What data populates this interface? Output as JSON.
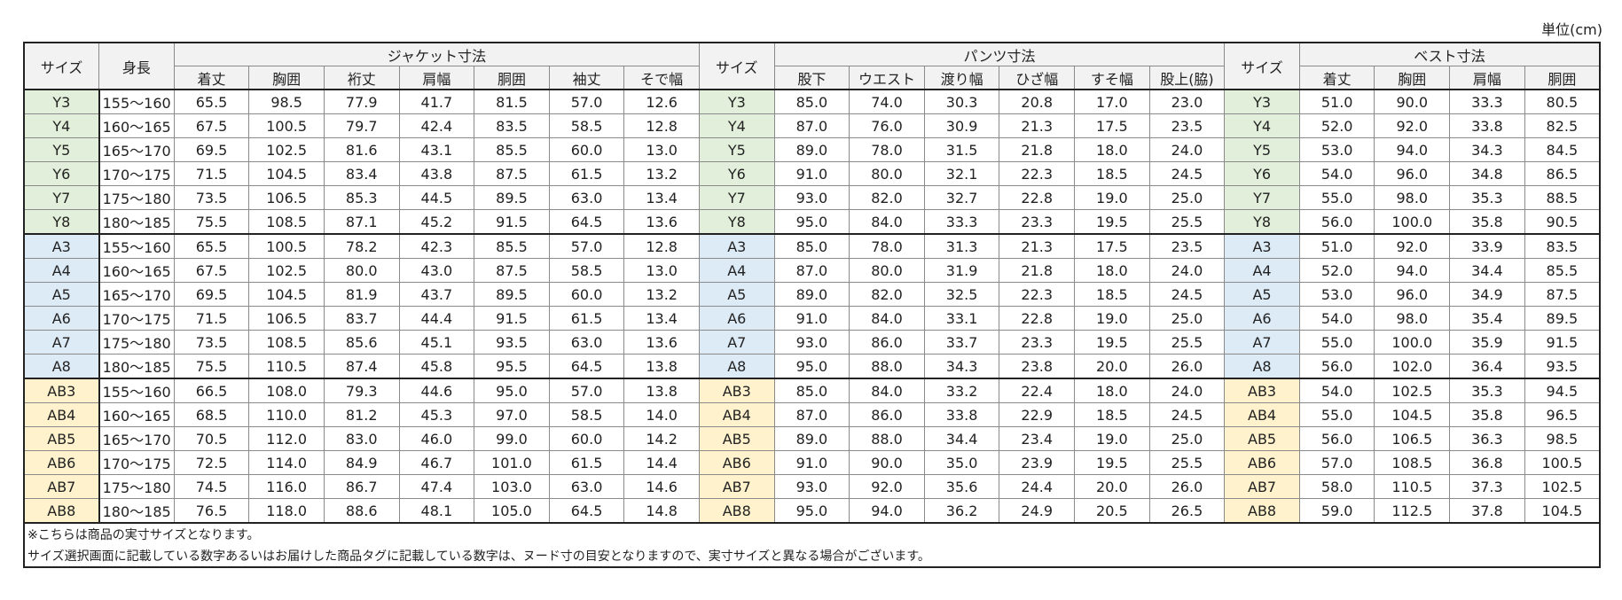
{
  "unit": "単位(cm)",
  "header": {
    "size": "サイズ",
    "height": "身長",
    "jacket": {
      "title": "ジャケット寸法",
      "columns": [
        "着丈",
        "胸囲",
        "裄丈",
        "肩幅",
        "胴囲",
        "袖丈",
        "そで幅"
      ]
    },
    "pants": {
      "title": "パンツ寸法",
      "columns": [
        "股下",
        "ウエスト",
        "渡り幅",
        "ひざ幅",
        "すそ幅",
        "股上(脇)"
      ]
    },
    "vest": {
      "title": "ベスト寸法",
      "columns": [
        "着丈",
        "胸囲",
        "肩幅",
        "胴囲"
      ]
    }
  },
  "groups": [
    {
      "color": "#e2efda",
      "rows": [
        {
          "size": "Y3",
          "height": "155～160",
          "jacket": [
            "65.5",
            "98.5",
            "77.9",
            "41.7",
            "81.5",
            "57.0",
            "12.6"
          ],
          "pants": [
            "85.0",
            "74.0",
            "30.3",
            "20.8",
            "17.0",
            "23.0"
          ],
          "vest": [
            "51.0",
            "90.0",
            "33.3",
            "80.5"
          ]
        },
        {
          "size": "Y4",
          "height": "160～165",
          "jacket": [
            "67.5",
            "100.5",
            "79.7",
            "42.4",
            "83.5",
            "58.5",
            "12.8"
          ],
          "pants": [
            "87.0",
            "76.0",
            "30.9",
            "21.3",
            "17.5",
            "23.5"
          ],
          "vest": [
            "52.0",
            "92.0",
            "33.8",
            "82.5"
          ]
        },
        {
          "size": "Y5",
          "height": "165～170",
          "jacket": [
            "69.5",
            "102.5",
            "81.6",
            "43.1",
            "85.5",
            "60.0",
            "13.0"
          ],
          "pants": [
            "89.0",
            "78.0",
            "31.5",
            "21.8",
            "18.0",
            "24.0"
          ],
          "vest": [
            "53.0",
            "94.0",
            "34.3",
            "84.5"
          ]
        },
        {
          "size": "Y6",
          "height": "170～175",
          "jacket": [
            "71.5",
            "104.5",
            "83.4",
            "43.8",
            "87.5",
            "61.5",
            "13.2"
          ],
          "pants": [
            "91.0",
            "80.0",
            "32.1",
            "22.3",
            "18.5",
            "24.5"
          ],
          "vest": [
            "54.0",
            "96.0",
            "34.8",
            "86.5"
          ]
        },
        {
          "size": "Y7",
          "height": "175～180",
          "jacket": [
            "73.5",
            "106.5",
            "85.3",
            "44.5",
            "89.5",
            "63.0",
            "13.4"
          ],
          "pants": [
            "93.0",
            "82.0",
            "32.7",
            "22.8",
            "19.0",
            "25.0"
          ],
          "vest": [
            "55.0",
            "98.0",
            "35.3",
            "88.5"
          ]
        },
        {
          "size": "Y8",
          "height": "180～185",
          "jacket": [
            "75.5",
            "108.5",
            "87.1",
            "45.2",
            "91.5",
            "64.5",
            "13.6"
          ],
          "pants": [
            "95.0",
            "84.0",
            "33.3",
            "23.3",
            "19.5",
            "25.5"
          ],
          "vest": [
            "56.0",
            "100.0",
            "35.8",
            "90.5"
          ]
        }
      ]
    },
    {
      "color": "#ddebf7",
      "rows": [
        {
          "size": "A3",
          "height": "155～160",
          "jacket": [
            "65.5",
            "100.5",
            "78.2",
            "42.3",
            "85.5",
            "57.0",
            "12.8"
          ],
          "pants": [
            "85.0",
            "78.0",
            "31.3",
            "21.3",
            "17.5",
            "23.5"
          ],
          "vest": [
            "51.0",
            "92.0",
            "33.9",
            "83.5"
          ]
        },
        {
          "size": "A4",
          "height": "160～165",
          "jacket": [
            "67.5",
            "102.5",
            "80.0",
            "43.0",
            "87.5",
            "58.5",
            "13.0"
          ],
          "pants": [
            "87.0",
            "80.0",
            "31.9",
            "21.8",
            "18.0",
            "24.0"
          ],
          "vest": [
            "52.0",
            "94.0",
            "34.4",
            "85.5"
          ]
        },
        {
          "size": "A5",
          "height": "165～170",
          "jacket": [
            "69.5",
            "104.5",
            "81.9",
            "43.7",
            "89.5",
            "60.0",
            "13.2"
          ],
          "pants": [
            "89.0",
            "82.0",
            "32.5",
            "22.3",
            "18.5",
            "24.5"
          ],
          "vest": [
            "53.0",
            "96.0",
            "34.9",
            "87.5"
          ]
        },
        {
          "size": "A6",
          "height": "170～175",
          "jacket": [
            "71.5",
            "106.5",
            "83.7",
            "44.4",
            "91.5",
            "61.5",
            "13.4"
          ],
          "pants": [
            "91.0",
            "84.0",
            "33.1",
            "22.8",
            "19.0",
            "25.0"
          ],
          "vest": [
            "54.0",
            "98.0",
            "35.4",
            "89.5"
          ]
        },
        {
          "size": "A7",
          "height": "175～180",
          "jacket": [
            "73.5",
            "108.5",
            "85.6",
            "45.1",
            "93.5",
            "63.0",
            "13.6"
          ],
          "pants": [
            "93.0",
            "86.0",
            "33.7",
            "23.3",
            "19.5",
            "25.5"
          ],
          "vest": [
            "55.0",
            "100.0",
            "35.9",
            "91.5"
          ]
        },
        {
          "size": "A8",
          "height": "180～185",
          "jacket": [
            "75.5",
            "110.5",
            "87.4",
            "45.8",
            "95.5",
            "64.5",
            "13.8"
          ],
          "pants": [
            "95.0",
            "88.0",
            "34.3",
            "23.8",
            "20.0",
            "26.0"
          ],
          "vest": [
            "56.0",
            "102.0",
            "36.4",
            "93.5"
          ]
        }
      ]
    },
    {
      "color": "#fff2cc",
      "rows": [
        {
          "size": "AB3",
          "height": "155～160",
          "jacket": [
            "66.5",
            "108.0",
            "79.3",
            "44.6",
            "95.0",
            "57.0",
            "13.8"
          ],
          "pants": [
            "85.0",
            "84.0",
            "33.2",
            "22.4",
            "18.0",
            "24.0"
          ],
          "vest": [
            "54.0",
            "102.5",
            "35.3",
            "94.5"
          ]
        },
        {
          "size": "AB4",
          "height": "160～165",
          "jacket": [
            "68.5",
            "110.0",
            "81.2",
            "45.3",
            "97.0",
            "58.5",
            "14.0"
          ],
          "pants": [
            "87.0",
            "86.0",
            "33.8",
            "22.9",
            "18.5",
            "24.5"
          ],
          "vest": [
            "55.0",
            "104.5",
            "35.8",
            "96.5"
          ]
        },
        {
          "size": "AB5",
          "height": "165～170",
          "jacket": [
            "70.5",
            "112.0",
            "83.0",
            "46.0",
            "99.0",
            "60.0",
            "14.2"
          ],
          "pants": [
            "89.0",
            "88.0",
            "34.4",
            "23.4",
            "19.0",
            "25.0"
          ],
          "vest": [
            "56.0",
            "106.5",
            "36.3",
            "98.5"
          ]
        },
        {
          "size": "AB6",
          "height": "170～175",
          "jacket": [
            "72.5",
            "114.0",
            "84.9",
            "46.7",
            "101.0",
            "61.5",
            "14.4"
          ],
          "pants": [
            "91.0",
            "90.0",
            "35.0",
            "23.9",
            "19.5",
            "25.5"
          ],
          "vest": [
            "57.0",
            "108.5",
            "36.8",
            "100.5"
          ]
        },
        {
          "size": "AB7",
          "height": "175～180",
          "jacket": [
            "74.5",
            "116.0",
            "86.7",
            "47.4",
            "103.0",
            "63.0",
            "14.6"
          ],
          "pants": [
            "93.0",
            "92.0",
            "35.6",
            "24.4",
            "20.0",
            "26.0"
          ],
          "vest": [
            "58.0",
            "110.5",
            "37.3",
            "102.5"
          ]
        },
        {
          "size": "AB8",
          "height": "180～185",
          "jacket": [
            "76.5",
            "118.0",
            "88.6",
            "48.1",
            "105.0",
            "64.5",
            "14.8"
          ],
          "pants": [
            "95.0",
            "94.0",
            "36.2",
            "24.9",
            "20.5",
            "26.5"
          ],
          "vest": [
            "59.0",
            "112.5",
            "37.8",
            "104.5"
          ]
        }
      ]
    }
  ],
  "notes": [
    "※こちらは商品の実寸サイズとなります。",
    "サイズ選択画面に記載している数字あるいはお届けした商品タグに記載している数字は、ヌード寸の目安となりますので、実寸サイズと異なる場合がございます。"
  ]
}
